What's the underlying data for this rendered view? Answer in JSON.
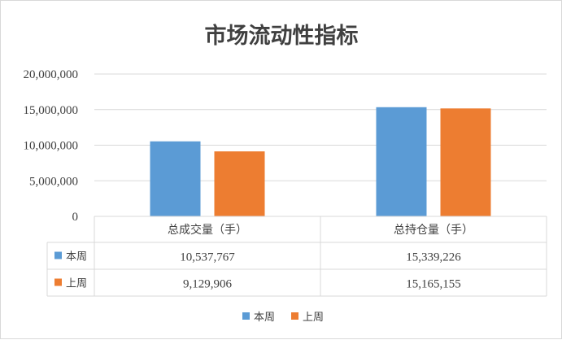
{
  "colors": {
    "series_1": "#5b9bd5",
    "series_2": "#ed7d31",
    "grid": "#d9d9d9",
    "text": "#404040"
  },
  "chart_data": {
    "type": "bar",
    "title": "市场流动性指标",
    "categories": [
      "总成交量（手）",
      "总持仓量（手）"
    ],
    "series": [
      {
        "name": "本周",
        "values": [
          10537767,
          15339226
        ],
        "labels": [
          "10,537,767",
          "15,339,226"
        ]
      },
      {
        "name": "上周",
        "values": [
          9129906,
          15165155
        ],
        "labels": [
          "9,129,906",
          "15,165,155"
        ]
      }
    ],
    "yticks": [
      "0",
      "5,000,000",
      "10,000,000",
      "15,000,000",
      "20,000,000"
    ],
    "ylim": [
      0,
      20000000
    ],
    "grid": true,
    "legend": "bottom",
    "data_table": true
  }
}
